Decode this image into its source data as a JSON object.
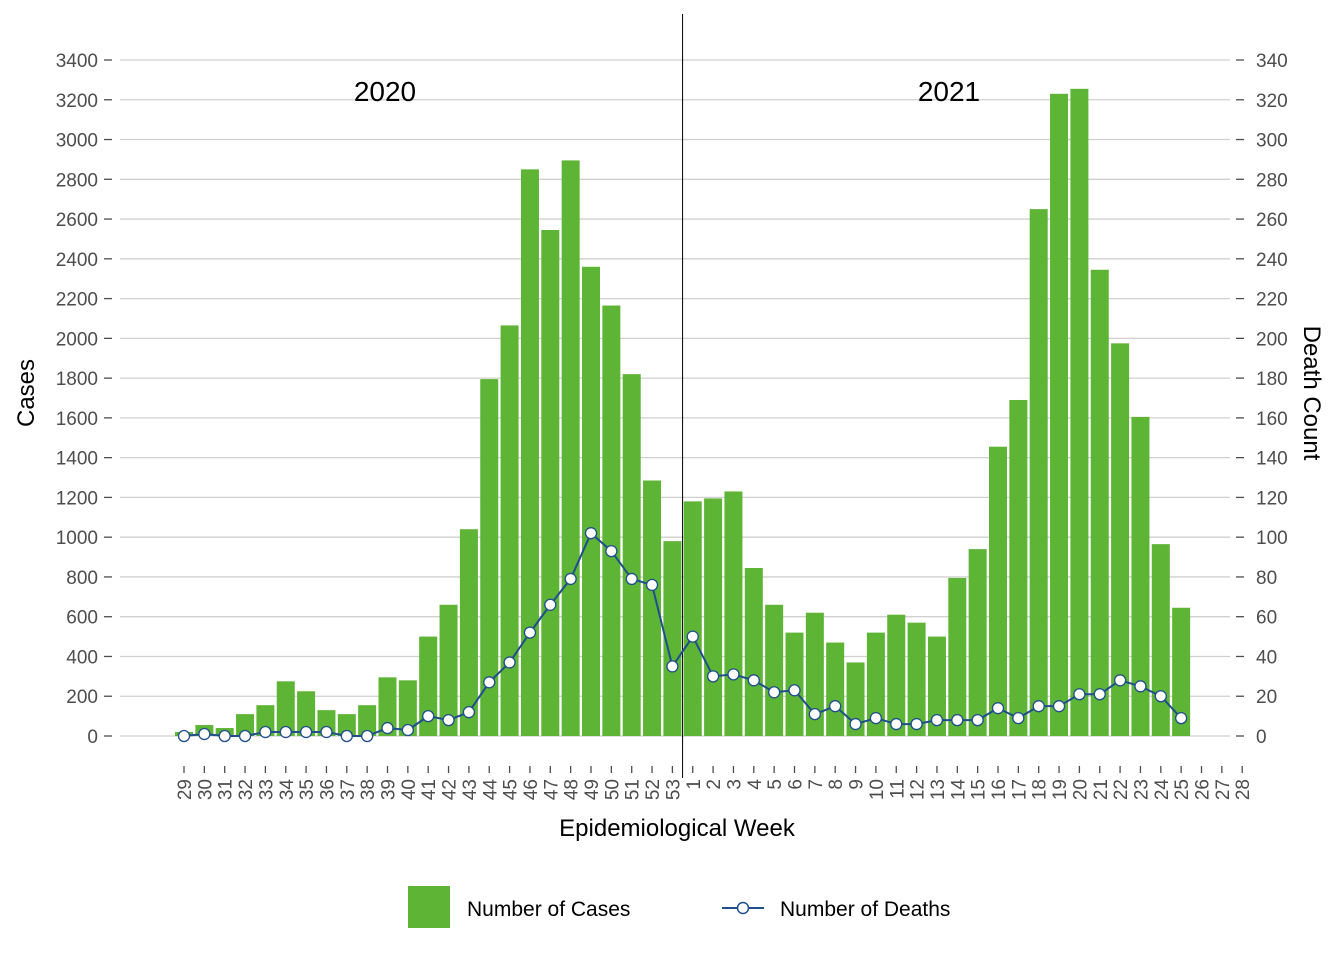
{
  "chart_data": {
    "type": "bar",
    "xlabel": "Epidemiological Week",
    "ylabel": "Cases",
    "y2label": "Death Count",
    "ylim": [
      0,
      3400
    ],
    "y2lim": [
      0,
      340
    ],
    "y_ticks": [
      0,
      200,
      400,
      600,
      800,
      1000,
      1200,
      1400,
      1600,
      1800,
      2000,
      2200,
      2400,
      2600,
      2800,
      3000,
      3200,
      3400
    ],
    "y2_ticks": [
      0,
      20,
      40,
      60,
      80,
      100,
      120,
      140,
      160,
      180,
      200,
      220,
      240,
      260,
      280,
      300,
      320,
      340
    ],
    "grid": "horizontal",
    "year_labels": [
      {
        "label": "2020",
        "region": "first"
      },
      {
        "label": "2021",
        "region": "second"
      }
    ],
    "year_divider_after": "53",
    "categories": [
      "29",
      "30",
      "31",
      "32",
      "33",
      "34",
      "35",
      "36",
      "37",
      "38",
      "39",
      "40",
      "41",
      "42",
      "43",
      "44",
      "45",
      "46",
      "47",
      "48",
      "49",
      "50",
      "51",
      "52",
      "53",
      "1",
      "2",
      "3",
      "4",
      "5",
      "6",
      "7",
      "8",
      "9",
      "10",
      "11",
      "12",
      "13",
      "14",
      "15",
      "16",
      "17",
      "18",
      "19",
      "20",
      "21",
      "22",
      "23",
      "24",
      "25",
      "26",
      "27",
      "28"
    ],
    "series": [
      {
        "name": "Number of Cases",
        "kind": "bar",
        "axis": "left",
        "color": "#5db435",
        "values": [
          20,
          55,
          40,
          110,
          155,
          275,
          225,
          130,
          110,
          155,
          295,
          280,
          500,
          660,
          1040,
          1795,
          2065,
          2850,
          2545,
          2895,
          2360,
          2165,
          1820,
          1285,
          980,
          1180,
          1195,
          1230,
          845,
          660,
          520,
          620,
          470,
          370,
          520,
          610,
          570,
          500,
          795,
          940,
          1455,
          1690,
          2650,
          3230,
          3255,
          2345,
          1975,
          1605,
          965,
          645,
          null,
          null,
          null
        ]
      },
      {
        "name": "Number of Deaths",
        "kind": "line",
        "axis": "right",
        "color": "#1f4e8c",
        "values": [
          0,
          1,
          0,
          0,
          2,
          2,
          2,
          2,
          0,
          0,
          4,
          3,
          10,
          8,
          12,
          27,
          37,
          52,
          66,
          79,
          102,
          93,
          79,
          76,
          35,
          50,
          30,
          31,
          28,
          22,
          23,
          11,
          15,
          6,
          9,
          6,
          6,
          8,
          8,
          8,
          14,
          9,
          15,
          15,
          21,
          21,
          28,
          25,
          20,
          9,
          null,
          null,
          null
        ]
      }
    ],
    "legend": {
      "position": "bottom",
      "items": [
        {
          "label": "Number of Cases",
          "kind": "bar"
        },
        {
          "label": "Number of Deaths",
          "kind": "line"
        }
      ]
    }
  }
}
